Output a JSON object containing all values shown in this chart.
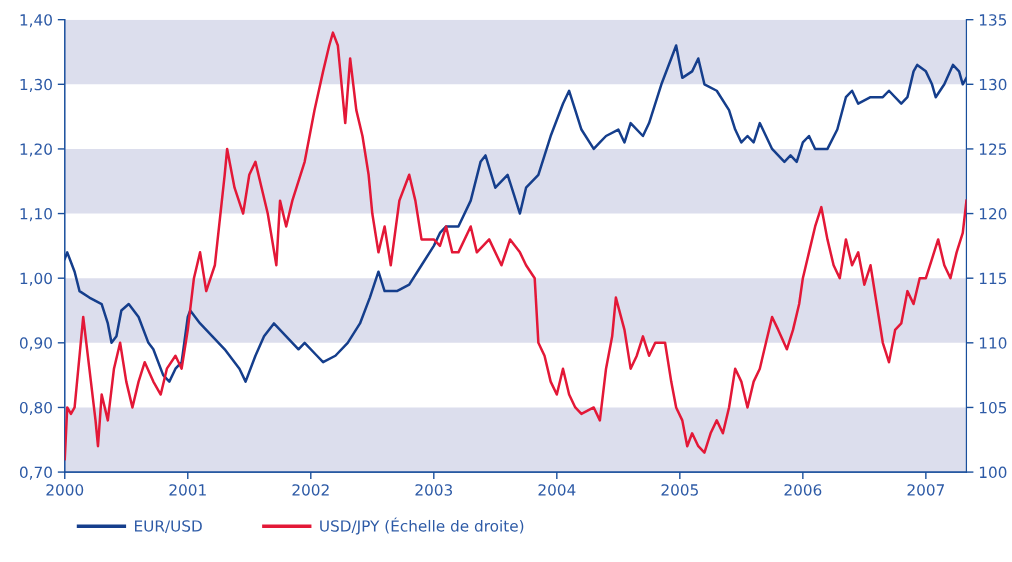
{
  "chart_data": {
    "type": "line",
    "xlim": [
      2000,
      2007.33
    ],
    "xticks": [
      2000,
      2001,
      2002,
      2003,
      2004,
      2005,
      2006,
      2007
    ],
    "ylim": [
      0.7,
      1.4
    ],
    "yticks": [
      {
        "value": 0.7,
        "label": "0,70"
      },
      {
        "value": 0.8,
        "label": "0,80"
      },
      {
        "value": 0.9,
        "label": "0,90"
      },
      {
        "value": 1.0,
        "label": "1,00"
      },
      {
        "value": 1.1,
        "label": "1,10"
      },
      {
        "value": 1.2,
        "label": "1,20"
      },
      {
        "value": 1.3,
        "label": "1,30"
      },
      {
        "value": 1.4,
        "label": "1,40"
      }
    ],
    "y2lim": [
      100,
      135
    ],
    "y2ticks": [
      100,
      105,
      110,
      115,
      120,
      125,
      130,
      135
    ],
    "bands": [
      {
        "axis": "y",
        "from": 0.7,
        "to": 0.8,
        "color": "#dcdeed"
      },
      {
        "axis": "y",
        "from": 0.9,
        "to": 1.0,
        "color": "#dcdeed"
      },
      {
        "axis": "y",
        "from": 1.1,
        "to": 1.2,
        "color": "#dcdeed"
      },
      {
        "axis": "y",
        "from": 1.3,
        "to": 1.4,
        "color": "#dcdeed"
      }
    ],
    "legend": "bottom",
    "grid": false,
    "series": [
      {
        "name": "EUR/USD",
        "color": "#153e8c",
        "x": [
          2000.0,
          2000.02,
          2000.08,
          2000.12,
          2000.2,
          2000.3,
          2000.35,
          2000.38,
          2000.42,
          2000.46,
          2000.52,
          2000.6,
          2000.68,
          2000.72,
          2000.8,
          2000.85,
          2000.9,
          2000.95,
          2001.0,
          2001.02,
          2001.1,
          2001.2,
          2001.3,
          2001.42,
          2001.47,
          2001.55,
          2001.62,
          2001.7,
          2001.8,
          2001.9,
          2001.95,
          2002.05,
          2002.1,
          2002.2,
          2002.3,
          2002.4,
          2002.48,
          2002.55,
          2002.6,
          2002.7,
          2002.8,
          2002.9,
          2003.0,
          2003.05,
          2003.1,
          2003.2,
          2003.3,
          2003.38,
          2003.42,
          2003.5,
          2003.6,
          2003.65,
          2003.7,
          2003.75,
          2003.85,
          2003.95,
          2004.05,
          2004.1,
          2004.15,
          2004.2,
          2004.3,
          2004.35,
          2004.4,
          2004.5,
          2004.55,
          2004.6,
          2004.7,
          2004.75,
          2004.85,
          2004.93,
          2004.97,
          2005.02,
          2005.1,
          2005.15,
          2005.2,
          2005.3,
          2005.4,
          2005.45,
          2005.5,
          2005.55,
          2005.6,
          2005.65,
          2005.7,
          2005.75,
          2005.85,
          2005.9,
          2005.95,
          2006.0,
          2006.05,
          2006.1,
          2006.2,
          2006.28,
          2006.35,
          2006.4,
          2006.45,
          2006.55,
          2006.65,
          2006.7,
          2006.8,
          2006.85,
          2006.9,
          2006.93,
          2007.0,
          2007.05,
          2007.08,
          2007.15,
          2007.22,
          2007.27,
          2007.3,
          2007.33
        ],
        "values": [
          1.03,
          1.04,
          1.01,
          0.98,
          0.97,
          0.96,
          0.93,
          0.9,
          0.91,
          0.95,
          0.96,
          0.94,
          0.9,
          0.89,
          0.85,
          0.84,
          0.86,
          0.87,
          0.94,
          0.95,
          0.93,
          0.91,
          0.89,
          0.86,
          0.84,
          0.88,
          0.91,
          0.93,
          0.91,
          0.89,
          0.9,
          0.88,
          0.87,
          0.88,
          0.9,
          0.93,
          0.97,
          1.01,
          0.98,
          0.98,
          0.99,
          1.02,
          1.05,
          1.07,
          1.08,
          1.08,
          1.12,
          1.18,
          1.19,
          1.14,
          1.16,
          1.13,
          1.1,
          1.14,
          1.16,
          1.22,
          1.27,
          1.29,
          1.26,
          1.23,
          1.2,
          1.21,
          1.22,
          1.23,
          1.21,
          1.24,
          1.22,
          1.24,
          1.3,
          1.34,
          1.36,
          1.31,
          1.32,
          1.34,
          1.3,
          1.29,
          1.26,
          1.23,
          1.21,
          1.22,
          1.21,
          1.24,
          1.22,
          1.2,
          1.18,
          1.19,
          1.18,
          1.21,
          1.22,
          1.2,
          1.2,
          1.23,
          1.28,
          1.29,
          1.27,
          1.28,
          1.28,
          1.29,
          1.27,
          1.28,
          1.32,
          1.33,
          1.32,
          1.3,
          1.28,
          1.3,
          1.33,
          1.32,
          1.3,
          1.31
        ]
      },
      {
        "name": "USD/JPY (Échelle de droite)",
        "color": "#e31837",
        "axis": "y2",
        "x": [
          2000.0,
          2000.02,
          2000.05,
          2000.08,
          2000.12,
          2000.15,
          2000.2,
          2000.25,
          2000.27,
          2000.3,
          2000.35,
          2000.4,
          2000.45,
          2000.5,
          2000.55,
          2000.6,
          2000.65,
          2000.72,
          2000.78,
          2000.83,
          2000.9,
          2000.95,
          2001.0,
          2001.05,
          2001.1,
          2001.15,
          2001.22,
          2001.3,
          2001.32,
          2001.38,
          2001.45,
          2001.5,
          2001.55,
          2001.6,
          2001.65,
          2001.72,
          2001.75,
          2001.8,
          2001.85,
          2001.95,
          2002.03,
          2002.1,
          2002.15,
          2002.18,
          2002.22,
          2002.28,
          2002.32,
          2002.37,
          2002.42,
          2002.47,
          2002.5,
          2002.55,
          2002.6,
          2002.65,
          2002.72,
          2002.8,
          2002.85,
          2002.9,
          2003.0,
          2003.05,
          2003.1,
          2003.15,
          2003.2,
          2003.3,
          2003.35,
          2003.45,
          2003.55,
          2003.62,
          2003.7,
          2003.75,
          2003.82,
          2003.85,
          2003.9,
          2003.95,
          2004.0,
          2004.05,
          2004.1,
          2004.15,
          2004.2,
          2004.3,
          2004.35,
          2004.4,
          2004.45,
          2004.48,
          2004.55,
          2004.6,
          2004.65,
          2004.7,
          2004.75,
          2004.8,
          2004.88,
          2004.93,
          2004.97,
          2005.02,
          2005.06,
          2005.1,
          2005.15,
          2005.2,
          2005.25,
          2005.3,
          2005.35,
          2005.4,
          2005.45,
          2005.5,
          2005.55,
          2005.6,
          2005.65,
          2005.7,
          2005.75,
          2005.8,
          2005.87,
          2005.92,
          2005.97,
          2006.0,
          2006.05,
          2006.1,
          2006.15,
          2006.2,
          2006.25,
          2006.3,
          2006.35,
          2006.4,
          2006.45,
          2006.5,
          2006.55,
          2006.6,
          2006.65,
          2006.7,
          2006.75,
          2006.8,
          2006.85,
          2006.9,
          2006.95,
          2007.0,
          2007.05,
          2007.1,
          2007.15,
          2007.2,
          2007.25,
          2007.3,
          2007.33
        ],
        "values": [
          101,
          105,
          104.5,
          105,
          109,
          112,
          108,
          104,
          102,
          106,
          104,
          108,
          110,
          107,
          105,
          107,
          108.5,
          107,
          106,
          108,
          109,
          108,
          111,
          115,
          117,
          114,
          116,
          123,
          125,
          122,
          120,
          123,
          124,
          122,
          120,
          116,
          121,
          119,
          121,
          124,
          128,
          131,
          133,
          134,
          133,
          127,
          132,
          128,
          126,
          123,
          120,
          117,
          119,
          116,
          121,
          123,
          121,
          118,
          118,
          117.5,
          119,
          117,
          117,
          119,
          117,
          118,
          116,
          118,
          117,
          116,
          115,
          110,
          109,
          107,
          106,
          108,
          106,
          105,
          104.5,
          105,
          104,
          108,
          110.5,
          113.5,
          111,
          108,
          109,
          110.5,
          109,
          110,
          110,
          107,
          105,
          104,
          102,
          103,
          102,
          101.5,
          103,
          104,
          103,
          105,
          108,
          107,
          105,
          107,
          108,
          110,
          112,
          111,
          109.5,
          111,
          113,
          115,
          117,
          119,
          120.5,
          118,
          116,
          115,
          118,
          116,
          117,
          114.5,
          116,
          113,
          110,
          108.5,
          111,
          111.5,
          114,
          113,
          115,
          115,
          116.5,
          118,
          116,
          115,
          117,
          118.5,
          121
        ]
      }
    ]
  }
}
